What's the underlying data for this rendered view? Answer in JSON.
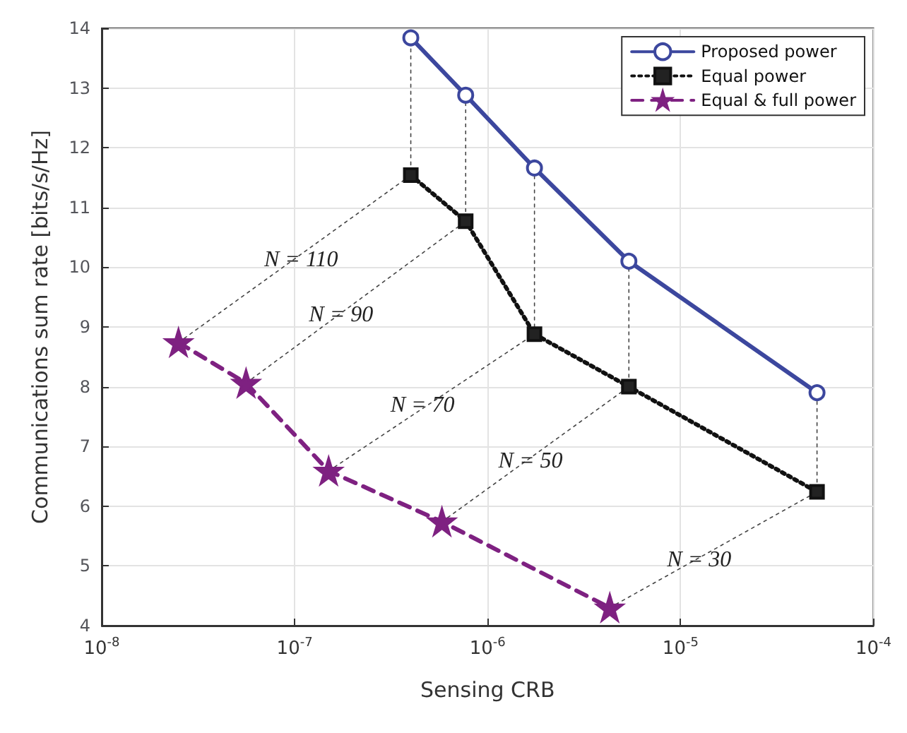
{
  "chart_data": {
    "type": "line",
    "xlabel": "Sensing CRB",
    "ylabel": "Communications sum rate [bits/s/Hz]",
    "log": "x",
    "grid": true,
    "legend": "top right",
    "xlim": [
      1e-08,
      0.0001
    ],
    "xticks": [
      {
        "value": 1e-08,
        "label": "10$^{-8}$"
      },
      {
        "value": 1e-07,
        "label": "10$^{-7}$"
      },
      {
        "value": 1e-06,
        "label": "10$^{-6}$"
      },
      {
        "value": 1e-05,
        "label": "10$^{-5}$"
      },
      {
        "value": 0.0001,
        "label": "10$^{-4}$"
      }
    ],
    "ylim": [
      4,
      14
    ],
    "yticks": [
      4,
      5,
      6,
      7,
      8,
      9,
      10,
      11,
      12,
      13,
      14
    ],
    "series": [
      {
        "name": "Proposed power",
        "color": "#3c479e",
        "marker": "circle",
        "line_style": "solid",
        "x": [
          4e-07,
          7.7e-07,
          1.75e-06,
          5.4e-06,
          5.1e-05
        ],
        "values": [
          13.84,
          12.88,
          11.66,
          10.1,
          7.9
        ]
      },
      {
        "name": "Equal power",
        "color": "#111111",
        "marker": "square",
        "line_style": "dotted",
        "x": [
          4e-07,
          7.7e-07,
          1.75e-06,
          5.4e-06,
          5.1e-05
        ],
        "values": [
          11.54,
          10.77,
          8.88,
          8.0,
          6.24
        ]
      },
      {
        "name": "Equal & full power",
        "color": "#7e2181",
        "marker": "star",
        "line_style": "dashed",
        "x": [
          2.5e-08,
          5.6e-08,
          1.5e-07,
          5.8e-07,
          4.3e-06
        ],
        "values": [
          8.74,
          8.06,
          6.59,
          5.74,
          4.3
        ]
      },
      {
        "color": "#444444",
        "marker": "none",
        "line_style": "dotted",
        "x": [
          2.5e-08,
          4e-07,
          4e-07
        ],
        "values": [
          8.74,
          11.54,
          13.84
        ]
      },
      {
        "color": "#444444",
        "marker": "none",
        "line_style": "dotted",
        "x": [
          5.6e-08,
          7.7e-07,
          7.7e-07
        ],
        "values": [
          8.06,
          10.77,
          12.88
        ]
      },
      {
        "color": "#444444",
        "marker": "none",
        "line_style": "dotted",
        "x": [
          1.5e-07,
          1.75e-06,
          1.75e-06
        ],
        "values": [
          6.59,
          8.88,
          11.66
        ]
      },
      {
        "color": "#444444",
        "marker": "none",
        "line_style": "dotted",
        "x": [
          5.8e-07,
          5.4e-06,
          5.4e-06
        ],
        "values": [
          5.74,
          8.0,
          10.1
        ]
      },
      {
        "color": "#444444",
        "marker": "none",
        "line_style": "dotted",
        "x": [
          4.3e-06,
          5.1e-05,
          5.1e-05
        ],
        "values": [
          4.3,
          6.24,
          7.9
        ]
      }
    ],
    "annotations": [
      {
        "text": "N = 110",
        "x": 1.08e-07,
        "y": 10.12
      },
      {
        "text": "N = 90",
        "x": 1.74e-07,
        "y": 9.2
      },
      {
        "text": "N = 70",
        "x": 4.6e-07,
        "y": 7.69
      },
      {
        "text": "N = 50",
        "x": 1.67e-06,
        "y": 6.76
      },
      {
        "text": "N = 30",
        "x": 1.25e-05,
        "y": 5.1
      }
    ]
  }
}
